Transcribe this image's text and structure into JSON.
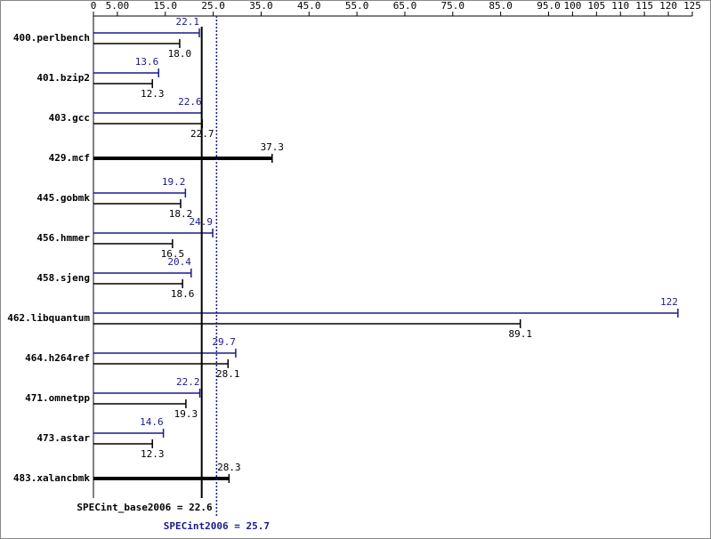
{
  "chart_data": {
    "type": "bar",
    "orientation": "horizontal",
    "categories": [
      "400.perlbench",
      "401.bzip2",
      "403.gcc",
      "429.mcf",
      "445.gobmk",
      "456.hmmer",
      "458.sjeng",
      "462.libquantum",
      "464.h264ref",
      "471.omnetpp",
      "473.astar",
      "483.xalancbmk"
    ],
    "series": [
      {
        "color": "#1a1a8c",
        "values": [
          22.1,
          13.6,
          22.6,
          null,
          19.2,
          24.9,
          20.4,
          122,
          29.7,
          22.2,
          14.6,
          null
        ],
        "value_labels": [
          "22.1",
          "13.6",
          "22.6",
          null,
          "19.2",
          "24.9",
          "20.4",
          "122",
          "29.7",
          "22.2",
          "14.6",
          null
        ]
      },
      {
        "color": "#000000",
        "values": [
          18.0,
          12.3,
          22.7,
          37.3,
          18.2,
          16.5,
          18.6,
          89.1,
          28.1,
          19.3,
          12.3,
          28.3
        ],
        "value_labels": [
          "18.0",
          "12.3",
          "22.7",
          "37.3",
          "18.2",
          "16.5",
          "18.6",
          "89.1",
          "28.1",
          "19.3",
          "12.3",
          "28.3"
        ]
      }
    ],
    "xlim": [
      0,
      125
    ],
    "xticks": [
      0,
      {
        "value": 5,
        "label": "5.00"
      },
      {
        "value": 15,
        "label": "15.0"
      },
      {
        "value": 25,
        "label": "25.0"
      },
      {
        "value": 35,
        "label": "35.0"
      },
      {
        "value": 45,
        "label": "45.0"
      },
      {
        "value": 55,
        "label": "55.0"
      },
      {
        "value": 65,
        "label": "65.0"
      },
      {
        "value": 75,
        "label": "75.0"
      },
      {
        "value": 85,
        "label": "85.0"
      },
      {
        "value": 95,
        "label": "95.0"
      },
      100,
      105,
      110,
      115,
      120,
      125
    ],
    "reference_lines": [
      {
        "label": "SPECint_base2006 = 22.6",
        "value": 22.6,
        "color": "#000000",
        "style": "solid"
      },
      {
        "label": "SPECint2006 = 25.7",
        "value": 25.7,
        "color": "#1a1a8c",
        "style": "dotted"
      }
    ]
  }
}
